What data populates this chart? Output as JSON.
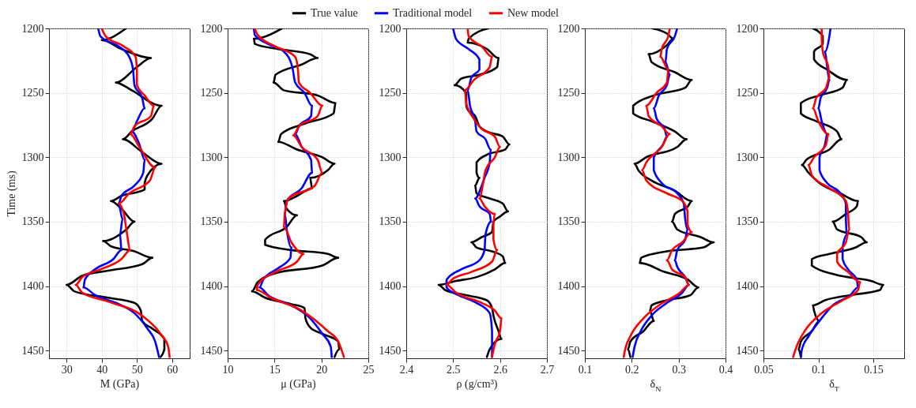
{
  "chart_data": [
    {
      "type": "line",
      "orientation": "horizontal",
      "xlabel": "M  (GPa)",
      "ylabel": "Time (ms)",
      "xlim": [
        25,
        65
      ],
      "xticks": [
        30,
        40,
        50,
        60
      ],
      "ylim": [
        1456,
        1200
      ],
      "yticks": [
        1200,
        1250,
        1300,
        1350,
        1400,
        1450
      ],
      "grid": true,
      "legend": "top",
      "series": [
        {
          "name": "True value",
          "color": "#000000",
          "x": [
            1200,
            1209,
            1216,
            1223,
            1230,
            1242,
            1248,
            1260,
            1270,
            1280,
            1286,
            1296,
            1305,
            1314,
            1320,
            1325,
            1330,
            1334,
            1340,
            1350,
            1356,
            1365,
            1369,
            1373,
            1378,
            1383,
            1388,
            1392,
            1399,
            1404,
            1409,
            1413,
            1419,
            1427,
            1433,
            1441,
            1449,
            1455
          ],
          "values": [
            46.9,
            40,
            45.6,
            54,
            50,
            44,
            48.5,
            57,
            54.4,
            48.5,
            46,
            51.5,
            57,
            53,
            52.2,
            52.2,
            45.6,
            42.6,
            45.6,
            49.3,
            47,
            40.4,
            42.6,
            49.3,
            54.4,
            51.5,
            41.8,
            34.4,
            30,
            32.2,
            41.8,
            49.3,
            51.1,
            51.5,
            54.4,
            57.8,
            57.8,
            56.7
          ]
        },
        {
          "name": "Traditional model",
          "color": "#0000ff",
          "x": [
            1200,
            1206,
            1214,
            1222,
            1232,
            1244,
            1254,
            1262,
            1272,
            1280,
            1290,
            1302,
            1312,
            1322,
            1330,
            1336,
            1348,
            1360,
            1372,
            1379,
            1387,
            1395,
            1401,
            1407,
            1413,
            1421,
            1433,
            1443,
            1455
          ],
          "values": [
            39,
            39.6,
            44.8,
            47.8,
            48.9,
            49.3,
            51.5,
            52.2,
            50,
            48.5,
            50.7,
            52.2,
            51.8,
            49.3,
            45.6,
            44.8,
            45.9,
            45.2,
            45.6,
            43.3,
            38.1,
            35.2,
            34.8,
            38.1,
            44,
            49.3,
            53,
            55.2,
            56.3
          ]
        },
        {
          "name": "New model",
          "color": "#ff0000",
          "x": [
            1200,
            1206,
            1214,
            1222,
            1232,
            1244,
            1252,
            1260,
            1268,
            1276,
            1282,
            1292,
            1308,
            1318,
            1328,
            1336,
            1344,
            1356,
            1372,
            1379,
            1387,
            1393,
            1399,
            1405,
            1412,
            1423,
            1437,
            1447,
            1455
          ],
          "values": [
            40,
            41.1,
            46.3,
            49.6,
            50,
            50,
            52.2,
            54.8,
            54,
            49.3,
            48.1,
            50.7,
            55.2,
            53.7,
            47.8,
            44.8,
            46.3,
            47,
            48.1,
            45.6,
            39.6,
            34.4,
            32.6,
            34.4,
            41.8,
            51.5,
            56.7,
            58.9,
            59.3
          ]
        }
      ]
    },
    {
      "type": "line",
      "orientation": "horizontal",
      "xlabel": "μ  (GPa)",
      "xlim": [
        10,
        25
      ],
      "xticks": [
        10,
        15,
        20,
        25
      ],
      "ylim": [
        1456,
        1200
      ],
      "yticks": [
        1200,
        1250,
        1300,
        1350,
        1400,
        1450
      ],
      "grid": true,
      "series": [
        {
          "name": "True value",
          "color": "#000000",
          "x": [
            1200,
            1208,
            1212,
            1216,
            1220,
            1223,
            1228,
            1236,
            1242,
            1248,
            1252,
            1258,
            1266,
            1274,
            1282,
            1288,
            1294,
            1300,
            1305,
            1310,
            1316,
            1324,
            1330,
            1334,
            1340,
            1345,
            1354,
            1364,
            1368,
            1372,
            1375,
            1378,
            1384,
            1390,
            1397,
            1404,
            1409,
            1414,
            1417,
            1425,
            1432,
            1437,
            1443,
            1449,
            1455
          ],
          "values": [
            15.8,
            12.8,
            12.9,
            15.4,
            18.8,
            19.6,
            17.9,
            15.1,
            14.9,
            16,
            19.6,
            21.5,
            21.3,
            18.2,
            15.7,
            15.4,
            17.4,
            20.1,
            21.4,
            20.7,
            18.8,
            19,
            17.4,
            16,
            16.3,
            17.4,
            16.3,
            14,
            14,
            16.8,
            20.7,
            21.8,
            20.1,
            15.1,
            13.2,
            12.6,
            14,
            16.8,
            18.2,
            18.3,
            18.8,
            20.1,
            21.8,
            21.9,
            21.4
          ]
        },
        {
          "name": "Traditional model",
          "color": "#0000ff",
          "x": [
            1200,
            1205,
            1212,
            1218,
            1230,
            1242,
            1250,
            1260,
            1268,
            1276,
            1282,
            1292,
            1302,
            1312,
            1324,
            1334,
            1344,
            1356,
            1370,
            1378,
            1386,
            1395,
            1401,
            1407,
            1415,
            1425,
            1437,
            1447,
            1455
          ],
          "values": [
            12.8,
            12.9,
            14.3,
            16,
            16.9,
            17.2,
            18.2,
            19,
            18.9,
            17.6,
            17.2,
            17.9,
            18.9,
            19,
            17.9,
            16.3,
            16.1,
            16.3,
            16.8,
            16.7,
            15.4,
            13.8,
            13.4,
            14.3,
            16.8,
            18.8,
            20.1,
            21,
            21.1
          ]
        },
        {
          "name": "New model",
          "color": "#ff0000",
          "x": [
            1200,
            1205,
            1214,
            1222,
            1232,
            1242,
            1250,
            1260,
            1268,
            1276,
            1283,
            1292,
            1302,
            1312,
            1322,
            1332,
            1344,
            1354,
            1366,
            1375,
            1381,
            1389,
            1399,
            1403,
            1409,
            1419,
            1435,
            1443,
            1455
          ],
          "values": [
            12.9,
            13.2,
            15.1,
            17.2,
            17.5,
            17.6,
            18.8,
            20.1,
            19.6,
            17.6,
            17,
            17.9,
            19.6,
            20.1,
            19.3,
            16.5,
            16.1,
            16,
            16.8,
            18.1,
            17.4,
            15.1,
            13.2,
            13.1,
            14.6,
            17.9,
            20.7,
            21.8,
            22.4
          ]
        }
      ]
    },
    {
      "type": "line",
      "orientation": "horizontal",
      "xlabel": "ρ  (g/cm³)",
      "xlim": [
        2.4,
        2.7
      ],
      "xticks": [
        2.4,
        2.5,
        2.6,
        2.7
      ],
      "ylim": [
        1456,
        1200
      ],
      "yticks": [
        1200,
        1250,
        1300,
        1350,
        1400,
        1450
      ],
      "grid": true,
      "series": [
        {
          "name": "True value",
          "color": "#000000",
          "x": [
            1200,
            1208,
            1211,
            1216,
            1223,
            1230,
            1236,
            1239,
            1244,
            1250,
            1260,
            1264,
            1268,
            1276,
            1280,
            1284,
            1290,
            1294,
            1298,
            1304,
            1312,
            1316,
            1322,
            1328,
            1332,
            1336,
            1342,
            1346,
            1350,
            1358,
            1362,
            1366,
            1370,
            1373,
            1377,
            1382,
            1387,
            1393,
            1396,
            1399,
            1403,
            1407,
            1411,
            1417,
            1423,
            1435,
            1441,
            1449,
            1455
          ],
          "values": [
            2.575,
            2.533,
            2.531,
            2.572,
            2.597,
            2.594,
            2.556,
            2.517,
            2.503,
            2.528,
            2.528,
            2.533,
            2.547,
            2.556,
            2.572,
            2.606,
            2.62,
            2.611,
            2.572,
            2.55,
            2.55,
            2.556,
            2.547,
            2.55,
            2.578,
            2.606,
            2.617,
            2.6,
            2.586,
            2.583,
            2.561,
            2.539,
            2.55,
            2.583,
            2.606,
            2.611,
            2.589,
            2.55,
            2.506,
            2.469,
            2.483,
            2.528,
            2.572,
            2.583,
            2.586,
            2.597,
            2.603,
            2.578,
            2.572
          ]
        },
        {
          "name": "Traditional model",
          "color": "#0000ff",
          "x": [
            1200,
            1208,
            1216,
            1224,
            1232,
            1238,
            1248,
            1260,
            1272,
            1280,
            1286,
            1294,
            1304,
            1316,
            1322,
            1332,
            1338,
            1344,
            1350,
            1360,
            1372,
            1380,
            1387,
            1395,
            1401,
            1407,
            1413,
            1421,
            1435,
            1455
          ],
          "values": [
            2.5,
            2.506,
            2.533,
            2.556,
            2.556,
            2.539,
            2.531,
            2.536,
            2.547,
            2.55,
            2.569,
            2.58,
            2.578,
            2.567,
            2.561,
            2.547,
            2.556,
            2.578,
            2.581,
            2.569,
            2.567,
            2.556,
            2.517,
            2.486,
            2.486,
            2.511,
            2.55,
            2.578,
            2.583,
            2.583
          ]
        },
        {
          "name": "New model",
          "color": "#ff0000",
          "x": [
            1200,
            1206,
            1214,
            1222,
            1230,
            1240,
            1248,
            1258,
            1270,
            1278,
            1284,
            1292,
            1300,
            1310,
            1320,
            1332,
            1338,
            1344,
            1352,
            1364,
            1372,
            1381,
            1389,
            1395,
            1399,
            1405,
            1413,
            1419,
            1425,
            1435,
            1445,
            1455
          ],
          "values": [
            2.531,
            2.533,
            2.561,
            2.583,
            2.578,
            2.544,
            2.525,
            2.528,
            2.544,
            2.561,
            2.589,
            2.6,
            2.589,
            2.569,
            2.564,
            2.556,
            2.567,
            2.589,
            2.586,
            2.586,
            2.594,
            2.583,
            2.539,
            2.497,
            2.486,
            2.506,
            2.561,
            2.589,
            2.603,
            2.6,
            2.589,
            2.583
          ]
        }
      ]
    },
    {
      "type": "line",
      "orientation": "horizontal",
      "xlabel": "δ$_{N}$",
      "xlim": [
        0.1,
        0.4
      ],
      "xticks": [
        0.1,
        0.2,
        0.3,
        0.4
      ],
      "ylim": [
        1456,
        1200
      ],
      "yticks": [
        1200,
        1250,
        1300,
        1350,
        1400,
        1450
      ],
      "grid": true,
      "series": [
        {
          "name": "True value",
          "color": "#000000",
          "x": [
            1200,
            1204,
            1208,
            1213,
            1220,
            1226,
            1234,
            1240,
            1246,
            1252,
            1260,
            1266,
            1272,
            1280,
            1286,
            1292,
            1300,
            1305,
            1310,
            1318,
            1326,
            1334,
            1338,
            1344,
            1350,
            1356,
            1362,
            1366,
            1370,
            1373,
            1378,
            1382,
            1389,
            1395,
            1401,
            1407,
            1411,
            1415,
            1419,
            1427,
            1435,
            1443,
            1449,
            1455
          ],
          "values": [
            0.244,
            0.275,
            0.289,
            0.275,
            0.236,
            0.242,
            0.292,
            0.328,
            0.314,
            0.247,
            0.203,
            0.203,
            0.242,
            0.292,
            0.317,
            0.297,
            0.231,
            0.206,
            0.214,
            0.242,
            0.292,
            0.328,
            0.32,
            0.292,
            0.286,
            0.297,
            0.347,
            0.375,
            0.353,
            0.275,
            0.22,
            0.217,
            0.27,
            0.32,
            0.342,
            0.325,
            0.275,
            0.242,
            0.239,
            0.247,
            0.225,
            0.197,
            0.192,
            0.197
          ]
        },
        {
          "name": "Traditional model",
          "color": "#0000ff",
          "x": [
            1200,
            1206,
            1216,
            1226,
            1236,
            1244,
            1252,
            1262,
            1270,
            1278,
            1284,
            1290,
            1300,
            1310,
            1320,
            1328,
            1336,
            1348,
            1356,
            1364,
            1372,
            1380,
            1385,
            1393,
            1399,
            1405,
            1413,
            1423,
            1435,
            1447,
            1455
          ],
          "values": [
            0.297,
            0.292,
            0.275,
            0.272,
            0.281,
            0.275,
            0.258,
            0.247,
            0.253,
            0.27,
            0.275,
            0.267,
            0.247,
            0.247,
            0.264,
            0.297,
            0.311,
            0.314,
            0.319,
            0.314,
            0.297,
            0.292,
            0.297,
            0.314,
            0.322,
            0.308,
            0.275,
            0.242,
            0.219,
            0.206,
            0.202
          ]
        },
        {
          "name": "New model",
          "color": "#ff0000",
          "x": [
            1200,
            1206,
            1216,
            1222,
            1232,
            1242,
            1250,
            1260,
            1268,
            1276,
            1282,
            1292,
            1304,
            1310,
            1318,
            1328,
            1334,
            1342,
            1352,
            1358,
            1366,
            1372,
            1380,
            1387,
            1393,
            1399,
            1405,
            1415,
            1425,
            1439,
            1449,
            1455
          ],
          "values": [
            0.281,
            0.278,
            0.264,
            0.261,
            0.278,
            0.275,
            0.253,
            0.231,
            0.236,
            0.264,
            0.281,
            0.264,
            0.231,
            0.222,
            0.231,
            0.275,
            0.308,
            0.319,
            0.319,
            0.328,
            0.308,
            0.286,
            0.275,
            0.286,
            0.314,
            0.322,
            0.303,
            0.258,
            0.225,
            0.197,
            0.186,
            0.183
          ]
        }
      ]
    },
    {
      "type": "line",
      "orientation": "horizontal",
      "xlabel": "δ$_{T}$",
      "xlim": [
        0.05,
        0.178
      ],
      "xticks": [
        0.05,
        0.1,
        0.15
      ],
      "ylim": [
        1456,
        1200
      ],
      "yticks": [
        1200,
        1250,
        1300,
        1350,
        1400,
        1450
      ],
      "grid": true,
      "series": [
        {
          "name": "True value",
          "color": "#000000",
          "x": [
            1200,
            1206,
            1212,
            1218,
            1224,
            1232,
            1240,
            1246,
            1252,
            1258,
            1266,
            1272,
            1280,
            1286,
            1294,
            1302,
            1306,
            1312,
            1320,
            1328,
            1334,
            1338,
            1344,
            1350,
            1356,
            1362,
            1366,
            1370,
            1375,
            1379,
            1384,
            1391,
            1396,
            1399,
            1403,
            1407,
            1411,
            1415,
            1419,
            1427,
            1435,
            1443,
            1449,
            1455
          ],
          "values": [
            0.095,
            0.104,
            0.104,
            0.096,
            0.096,
            0.108,
            0.126,
            0.122,
            0.101,
            0.084,
            0.084,
            0.098,
            0.117,
            0.121,
            0.11,
            0.089,
            0.085,
            0.091,
            0.101,
            0.12,
            0.136,
            0.135,
            0.125,
            0.113,
            0.117,
            0.139,
            0.144,
            0.134,
            0.11,
            0.094,
            0.094,
            0.115,
            0.148,
            0.159,
            0.156,
            0.129,
            0.106,
            0.095,
            0.096,
            0.101,
            0.094,
            0.084,
            0.082,
            0.084
          ]
        },
        {
          "name": "Traditional model",
          "color": "#0000ff",
          "x": [
            1200,
            1206,
            1218,
            1230,
            1240,
            1246,
            1254,
            1262,
            1272,
            1282,
            1290,
            1300,
            1310,
            1320,
            1328,
            1336,
            1348,
            1360,
            1370,
            1379,
            1387,
            1395,
            1401,
            1407,
            1415,
            1427,
            1439,
            1449,
            1455
          ],
          "values": [
            0.111,
            0.11,
            0.106,
            0.108,
            0.11,
            0.108,
            0.102,
            0.1,
            0.103,
            0.108,
            0.106,
            0.101,
            0.101,
            0.108,
            0.12,
            0.125,
            0.125,
            0.126,
            0.122,
            0.122,
            0.127,
            0.135,
            0.136,
            0.129,
            0.113,
            0.101,
            0.091,
            0.085,
            0.084
          ]
        },
        {
          "name": "New model",
          "color": "#ff0000",
          "x": [
            1200,
            1208,
            1218,
            1230,
            1238,
            1246,
            1254,
            1262,
            1272,
            1282,
            1290,
            1300,
            1306,
            1314,
            1324,
            1334,
            1344,
            1356,
            1366,
            1375,
            1381,
            1389,
            1397,
            1403,
            1411,
            1421,
            1433,
            1445,
            1455
          ],
          "values": [
            0.103,
            0.103,
            0.104,
            0.109,
            0.11,
            0.107,
            0.098,
            0.095,
            0.1,
            0.109,
            0.107,
            0.096,
            0.091,
            0.094,
            0.11,
            0.125,
            0.127,
            0.128,
            0.125,
            0.117,
            0.117,
            0.127,
            0.138,
            0.136,
            0.122,
            0.103,
            0.089,
            0.081,
            0.077
          ]
        }
      ]
    }
  ]
}
